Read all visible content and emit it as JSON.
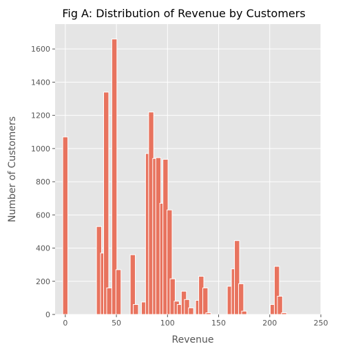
{
  "chart_data": {
    "type": "bar",
    "title": "Fig A: Distribution of Revenue by Customers",
    "xlabel": "Revenue",
    "ylabel": "Number of Customers",
    "xlim": [
      -10,
      250
    ],
    "ylim": [
      0,
      1750
    ],
    "x_ticks": [
      0,
      50,
      100,
      150,
      200,
      250
    ],
    "y_ticks": [
      0,
      200,
      400,
      600,
      800,
      1000,
      1200,
      1400,
      1600
    ],
    "bin_width": 5,
    "grid": true,
    "bar_color": "#E8735E",
    "background_color": "#E5E5E5",
    "bins": [
      {
        "x": 0,
        "value": 1070
      },
      {
        "x": 33,
        "value": 530
      },
      {
        "x": 37,
        "value": 370
      },
      {
        "x": 40,
        "value": 1340
      },
      {
        "x": 43,
        "value": 160
      },
      {
        "x": 48,
        "value": 1660
      },
      {
        "x": 52,
        "value": 270
      },
      {
        "x": 57,
        "value": 0
      },
      {
        "x": 66,
        "value": 360
      },
      {
        "x": 69,
        "value": 60
      },
      {
        "x": 77,
        "value": 75
      },
      {
        "x": 81,
        "value": 970
      },
      {
        "x": 84,
        "value": 1220
      },
      {
        "x": 88,
        "value": 940
      },
      {
        "x": 91,
        "value": 945
      },
      {
        "x": 95,
        "value": 670
      },
      {
        "x": 98,
        "value": 935
      },
      {
        "x": 102,
        "value": 630
      },
      {
        "x": 105,
        "value": 215
      },
      {
        "x": 109,
        "value": 80
      },
      {
        "x": 112,
        "value": 60
      },
      {
        "x": 116,
        "value": 140
      },
      {
        "x": 119,
        "value": 90
      },
      {
        "x": 123,
        "value": 40
      },
      {
        "x": 130,
        "value": 85
      },
      {
        "x": 133,
        "value": 230
      },
      {
        "x": 137,
        "value": 160
      },
      {
        "x": 140,
        "value": 10
      },
      {
        "x": 161,
        "value": 170
      },
      {
        "x": 165,
        "value": 275
      },
      {
        "x": 168,
        "value": 445
      },
      {
        "x": 172,
        "value": 185
      },
      {
        "x": 175,
        "value": 20
      },
      {
        "x": 203,
        "value": 60
      },
      {
        "x": 207,
        "value": 290
      },
      {
        "x": 210,
        "value": 110
      },
      {
        "x": 214,
        "value": 10
      }
    ]
  }
}
